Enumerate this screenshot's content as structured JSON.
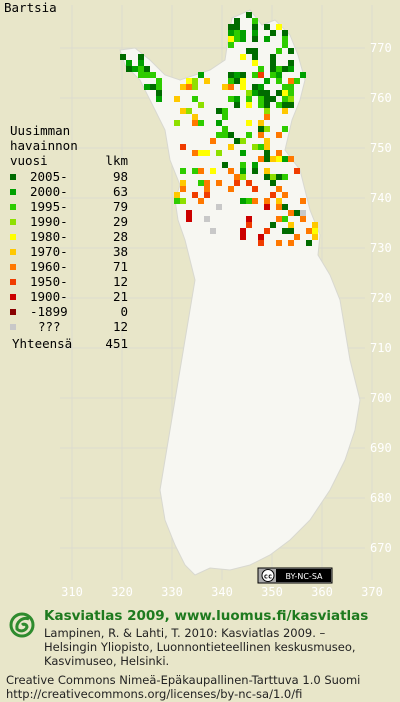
{
  "title": "Bartsia",
  "legend": {
    "header": [
      "Uusimman",
      "havainnon",
      "vuosi"
    ],
    "count_header": "lkm",
    "rows": [
      {
        "label": "2005-",
        "count": 98,
        "color": "#006b00"
      },
      {
        "label": "2000-",
        "count": 63,
        "color": "#00a000"
      },
      {
        "label": "1995-",
        "count": 79,
        "color": "#2ecc00"
      },
      {
        "label": "1990-",
        "count": 29,
        "color": "#8ee000"
      },
      {
        "label": "1980-",
        "count": 28,
        "color": "#ffff00"
      },
      {
        "label": "1970-",
        "count": 38,
        "color": "#ffc800"
      },
      {
        "label": "1960-",
        "count": 71,
        "color": "#ff7800"
      },
      {
        "label": "1950-",
        "count": 12,
        "color": "#f03c00"
      },
      {
        "label": "1900-",
        "count": 21,
        "color": "#cc0000"
      },
      {
        "label": "-1899",
        "count": 0,
        "color": "#880000"
      },
      {
        "label": "???",
        "count": 12,
        "color": "#c8c8c8"
      }
    ],
    "total_label": "Yhteensä",
    "total": 451
  },
  "map": {
    "y_labels": [
      770,
      760,
      750,
      740,
      730,
      720,
      710,
      700,
      690,
      680,
      670
    ],
    "x_labels": [
      310,
      320,
      330,
      340,
      350,
      360,
      370
    ]
  },
  "badge": {
    "symbol": "cc",
    "text": "BY-NC-SA"
  },
  "footer": {
    "title": "Kasviatlas 2009, www.luomus.fi/kasviatlas",
    "citation": [
      "Lampinen, R. & Lahti, T. 2010: Kasviatlas 2009. –",
      "Helsingin Yliopisto, Luonnontieteellinen keskusmuseo,",
      "Kasvimuseo, Helsinki."
    ],
    "license": [
      "Creative Commons Nimeä-Epäkaupallinen-Tarttuva 1.0 Suomi",
      "http://creativecommons.org/licenses/by-nc-sa/1.0/fi"
    ]
  }
}
